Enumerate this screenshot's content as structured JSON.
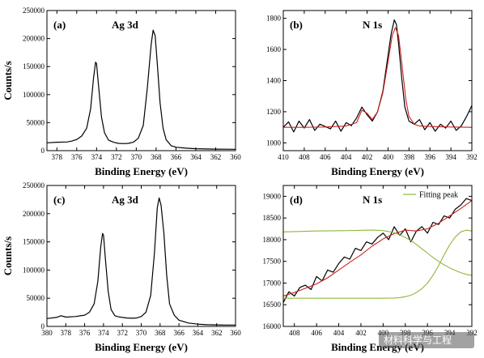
{
  "chart_data": [
    {
      "panel": "(a)",
      "title": "Ag 3d",
      "type": "line",
      "xlabel": "Binding Energy (eV)",
      "ylabel": "Counts/s",
      "xlim": [
        379,
        360
      ],
      "ylim": [
        0,
        250000
      ],
      "xticks": [
        378,
        376,
        374,
        372,
        370,
        368,
        366,
        364,
        362,
        360
      ],
      "yticks": [
        0,
        50000,
        100000,
        150000,
        200000,
        250000
      ],
      "series": [
        {
          "color": "#000000",
          "x": [
            379,
            378,
            377,
            376.5,
            376,
            375.5,
            375,
            374.6,
            374.3,
            374.1,
            374.0,
            373.8,
            373.5,
            373.2,
            372.8,
            372.3,
            371.8,
            371.3,
            370.8,
            370.3,
            369.8,
            369.3,
            368.9,
            368.5,
            368.3,
            368.1,
            367.9,
            367.6,
            367.3,
            367.0,
            366.5,
            366.0,
            365.0,
            364.0,
            363.0,
            362.0,
            361.0,
            360.0
          ],
          "y": [
            14000,
            15000,
            15500,
            17000,
            20000,
            26000,
            40000,
            75000,
            130000,
            158000,
            155000,
            115000,
            60000,
            32000,
            19000,
            15000,
            13000,
            12500,
            13000,
            15000,
            22000,
            45000,
            110000,
            190000,
            215000,
            205000,
            160000,
            85000,
            40000,
            20000,
            9000,
            6000,
            4500,
            3500,
            3000,
            2800,
            2600,
            2500
          ]
        }
      ]
    },
    {
      "panel": "(b)",
      "title": "N 1s",
      "type": "line",
      "xlabel": "Binding Energy (eV)",
      "ylabel": "",
      "xlim": [
        410,
        392
      ],
      "ylim": [
        950,
        1850
      ],
      "xticks": [
        410,
        408,
        406,
        404,
        402,
        400,
        398,
        396,
        394,
        392
      ],
      "yticks": [
        1000,
        1200,
        1400,
        1600,
        1800
      ],
      "series": [
        {
          "color": "#000000",
          "x": [
            410,
            409.5,
            409,
            408.5,
            408,
            407.5,
            407,
            406.5,
            406,
            405.5,
            405,
            404.5,
            404,
            403.5,
            403,
            402.5,
            402,
            401.5,
            401,
            400.5,
            400,
            399.7,
            399.4,
            399.2,
            399.0,
            398.7,
            398.4,
            398.0,
            397.5,
            397,
            396.5,
            396,
            395.5,
            395,
            394.5,
            394,
            393.5,
            393,
            392.5,
            392
          ],
          "y": [
            1100,
            1135,
            1070,
            1140,
            1095,
            1150,
            1080,
            1120,
            1105,
            1090,
            1140,
            1075,
            1130,
            1110,
            1160,
            1230,
            1180,
            1140,
            1200,
            1330,
            1560,
            1700,
            1790,
            1760,
            1640,
            1420,
            1230,
            1140,
            1120,
            1150,
            1085,
            1130,
            1075,
            1120,
            1095,
            1140,
            1080,
            1110,
            1170,
            1240
          ]
        },
        {
          "color": "#cc2222",
          "x": [
            410,
            408,
            406,
            404,
            403,
            402.5,
            402,
            401.5,
            401,
            400.5,
            400,
            399.6,
            399.3,
            399.0,
            398.7,
            398.3,
            398.0,
            397.5,
            397,
            396,
            394,
            392
          ],
          "y": [
            1100,
            1100,
            1102,
            1108,
            1130,
            1210,
            1190,
            1150,
            1200,
            1320,
            1520,
            1690,
            1740,
            1690,
            1520,
            1280,
            1170,
            1120,
            1108,
            1105,
            1102,
            1100
          ]
        }
      ]
    },
    {
      "panel": "(c)",
      "title": "Ag 3d",
      "type": "line",
      "xlabel": "Binding Energy (eV)",
      "ylabel": "Counts/s",
      "xlim": [
        380,
        360
      ],
      "ylim": [
        0,
        250000
      ],
      "xticks": [
        380,
        378,
        376,
        374,
        372,
        370,
        368,
        366,
        364,
        362,
        360
      ],
      "yticks": [
        0,
        50000,
        100000,
        150000,
        200000,
        250000
      ],
      "series": [
        {
          "color": "#000000",
          "x": [
            380,
            379,
            378.5,
            378,
            377,
            376,
            375.5,
            375,
            374.6,
            374.3,
            374.1,
            374.0,
            373.8,
            373.5,
            373.2,
            372.8,
            372.4,
            372,
            371.5,
            371,
            370.5,
            370,
            369.5,
            369,
            368.6,
            368.3,
            368.1,
            367.9,
            367.6,
            367.3,
            367,
            366.5,
            366,
            365,
            364,
            363,
            362,
            361,
            360
          ],
          "y": [
            14000,
            16000,
            19000,
            16500,
            17500,
            20000,
            25000,
            40000,
            80000,
            140000,
            165000,
            162000,
            120000,
            62000,
            30000,
            19000,
            17000,
            16000,
            15000,
            14500,
            15000,
            17500,
            25000,
            55000,
            130000,
            210000,
            228000,
            215000,
            165000,
            90000,
            40000,
            20000,
            11000,
            6000,
            4000,
            3000,
            2700,
            2500,
            2400
          ]
        }
      ]
    },
    {
      "panel": "(d)",
      "title": "N 1s",
      "type": "line",
      "xlabel": "Binding Energy (eV)",
      "ylabel": "",
      "xlim": [
        409,
        392
      ],
      "ylim": [
        16000,
        19250
      ],
      "xticks": [
        408,
        406,
        404,
        402,
        400,
        398,
        396,
        394,
        392
      ],
      "yticks": [
        16000,
        16500,
        17000,
        17500,
        18000,
        18500,
        19000
      ],
      "legend": "Fitting peak",
      "series": [
        {
          "color": "#000000",
          "x": [
            409,
            408.5,
            408,
            407.5,
            407,
            406.5,
            406,
            405.5,
            405,
            404.5,
            404,
            403.5,
            403,
            402.5,
            402,
            401.5,
            401,
            400.5,
            400,
            399.5,
            399,
            398.5,
            398,
            397.5,
            397,
            396.5,
            396,
            395.5,
            395,
            394.5,
            394,
            393.5,
            393,
            392.5,
            392
          ],
          "y": [
            16550,
            16800,
            16700,
            16900,
            16950,
            16850,
            17150,
            17050,
            17300,
            17250,
            17450,
            17600,
            17550,
            17800,
            17750,
            17950,
            17900,
            18050,
            18150,
            18000,
            18300,
            18100,
            18250,
            17950,
            18200,
            18300,
            18150,
            18400,
            18350,
            18550,
            18500,
            18700,
            18800,
            18950,
            18900
          ]
        },
        {
          "color": "#cc2222",
          "x": [
            409,
            408,
            407,
            406,
            405,
            404,
            403,
            402,
            401,
            400,
            399,
            398,
            397,
            396,
            395,
            394,
            393,
            392
          ],
          "y": [
            16700,
            16780,
            16880,
            16980,
            17120,
            17300,
            17480,
            17650,
            17850,
            18020,
            18140,
            18220,
            18200,
            18250,
            18380,
            18550,
            18720,
            18900
          ]
        },
        {
          "color": "#8fb83a",
          "x": [
            409,
            406,
            403,
            401,
            400,
            399.5,
            399,
            398.5,
            398,
            397.5,
            397,
            396.5,
            396,
            395.5,
            395,
            394.5,
            394,
            393.5,
            393,
            392.5,
            392
          ],
          "y": [
            18180,
            18200,
            18210,
            18220,
            18210,
            18190,
            18160,
            18110,
            18050,
            17980,
            17890,
            17790,
            17690,
            17590,
            17500,
            17420,
            17350,
            17290,
            17240,
            17200,
            17180
          ]
        },
        {
          "color": "#8fb83a",
          "x": [
            409,
            404,
            400,
            399,
            398.5,
            398,
            397.5,
            397,
            396.5,
            396,
            395.5,
            395,
            394.5,
            394,
            393.5,
            393,
            392.5,
            392
          ],
          "y": [
            16650,
            16650,
            16650,
            16655,
            16665,
            16685,
            16720,
            16780,
            16870,
            17000,
            17180,
            17400,
            17650,
            17880,
            18060,
            18180,
            18220,
            18200
          ]
        }
      ]
    }
  ],
  "watermark": "材料科学与工程"
}
